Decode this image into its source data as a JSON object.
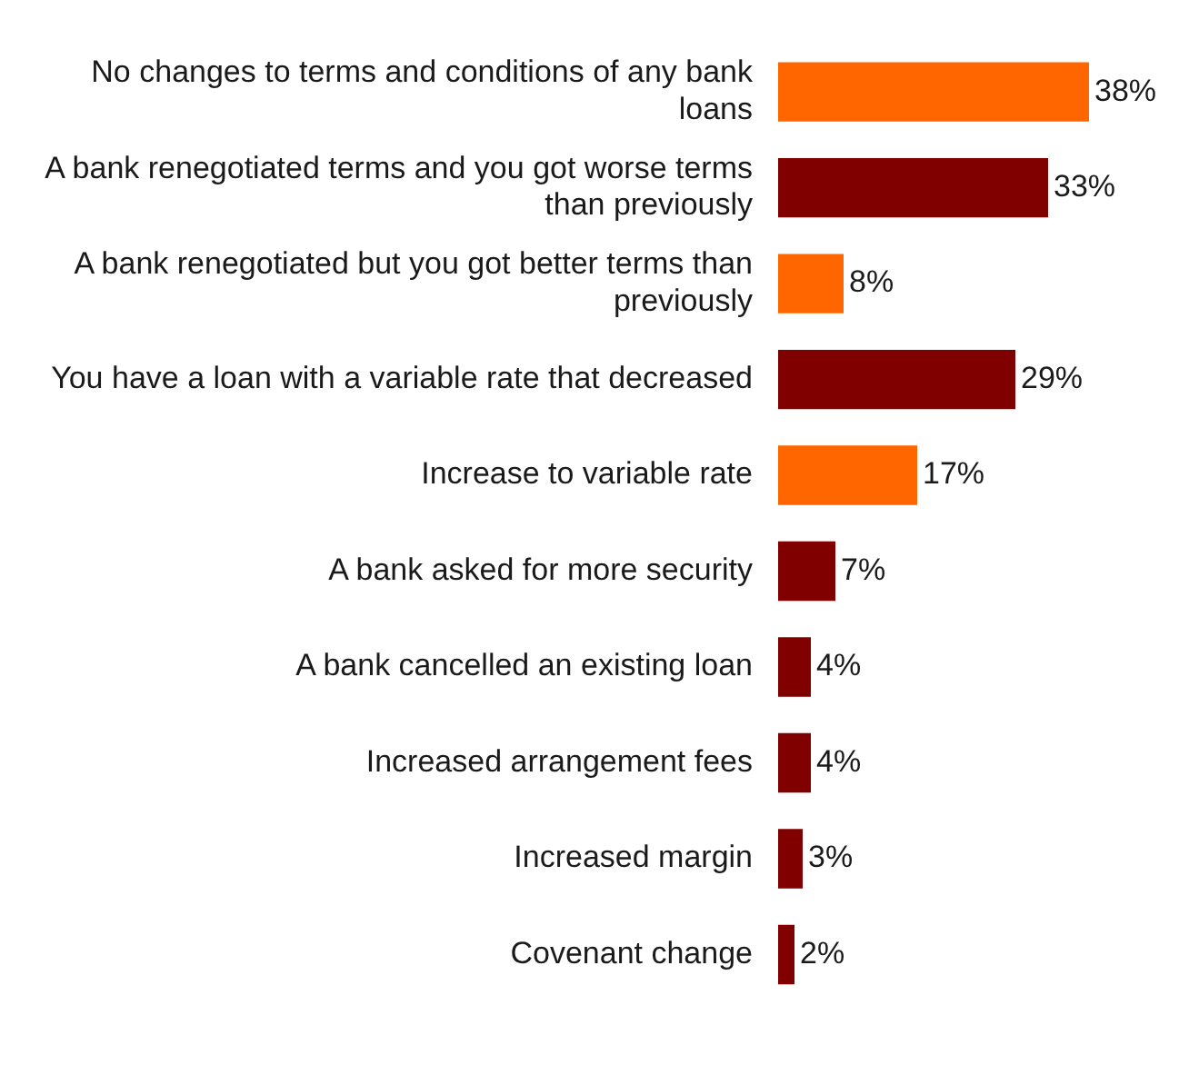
{
  "chart_data": {
    "type": "bar",
    "orientation": "horizontal",
    "categories": [
      "No changes to terms and conditions of any bank loans",
      "A bank renegotiated terms and you got worse terms than previously",
      "A bank renegotiated but you got better terms than previously",
      "You have a loan with a variable rate that decreased",
      "Increase to variable rate",
      "A bank asked for more security",
      "A bank cancelled an existing loan",
      "Increased arrangement fees",
      "Increased margin",
      "Covenant change"
    ],
    "values": [
      38,
      33,
      8,
      29,
      17,
      7,
      4,
      4,
      3,
      2
    ],
    "colors": [
      "#ff6600",
      "#800000",
      "#ff6600",
      "#800000",
      "#ff6600",
      "#800000",
      "#800000",
      "#800000",
      "#800000",
      "#800000"
    ],
    "value_labels": [
      "38%",
      "33%",
      "8%",
      "29%",
      "17%",
      "7%",
      "4%",
      "4%",
      "3%",
      "2%"
    ],
    "grid": false,
    "legend": false
  }
}
